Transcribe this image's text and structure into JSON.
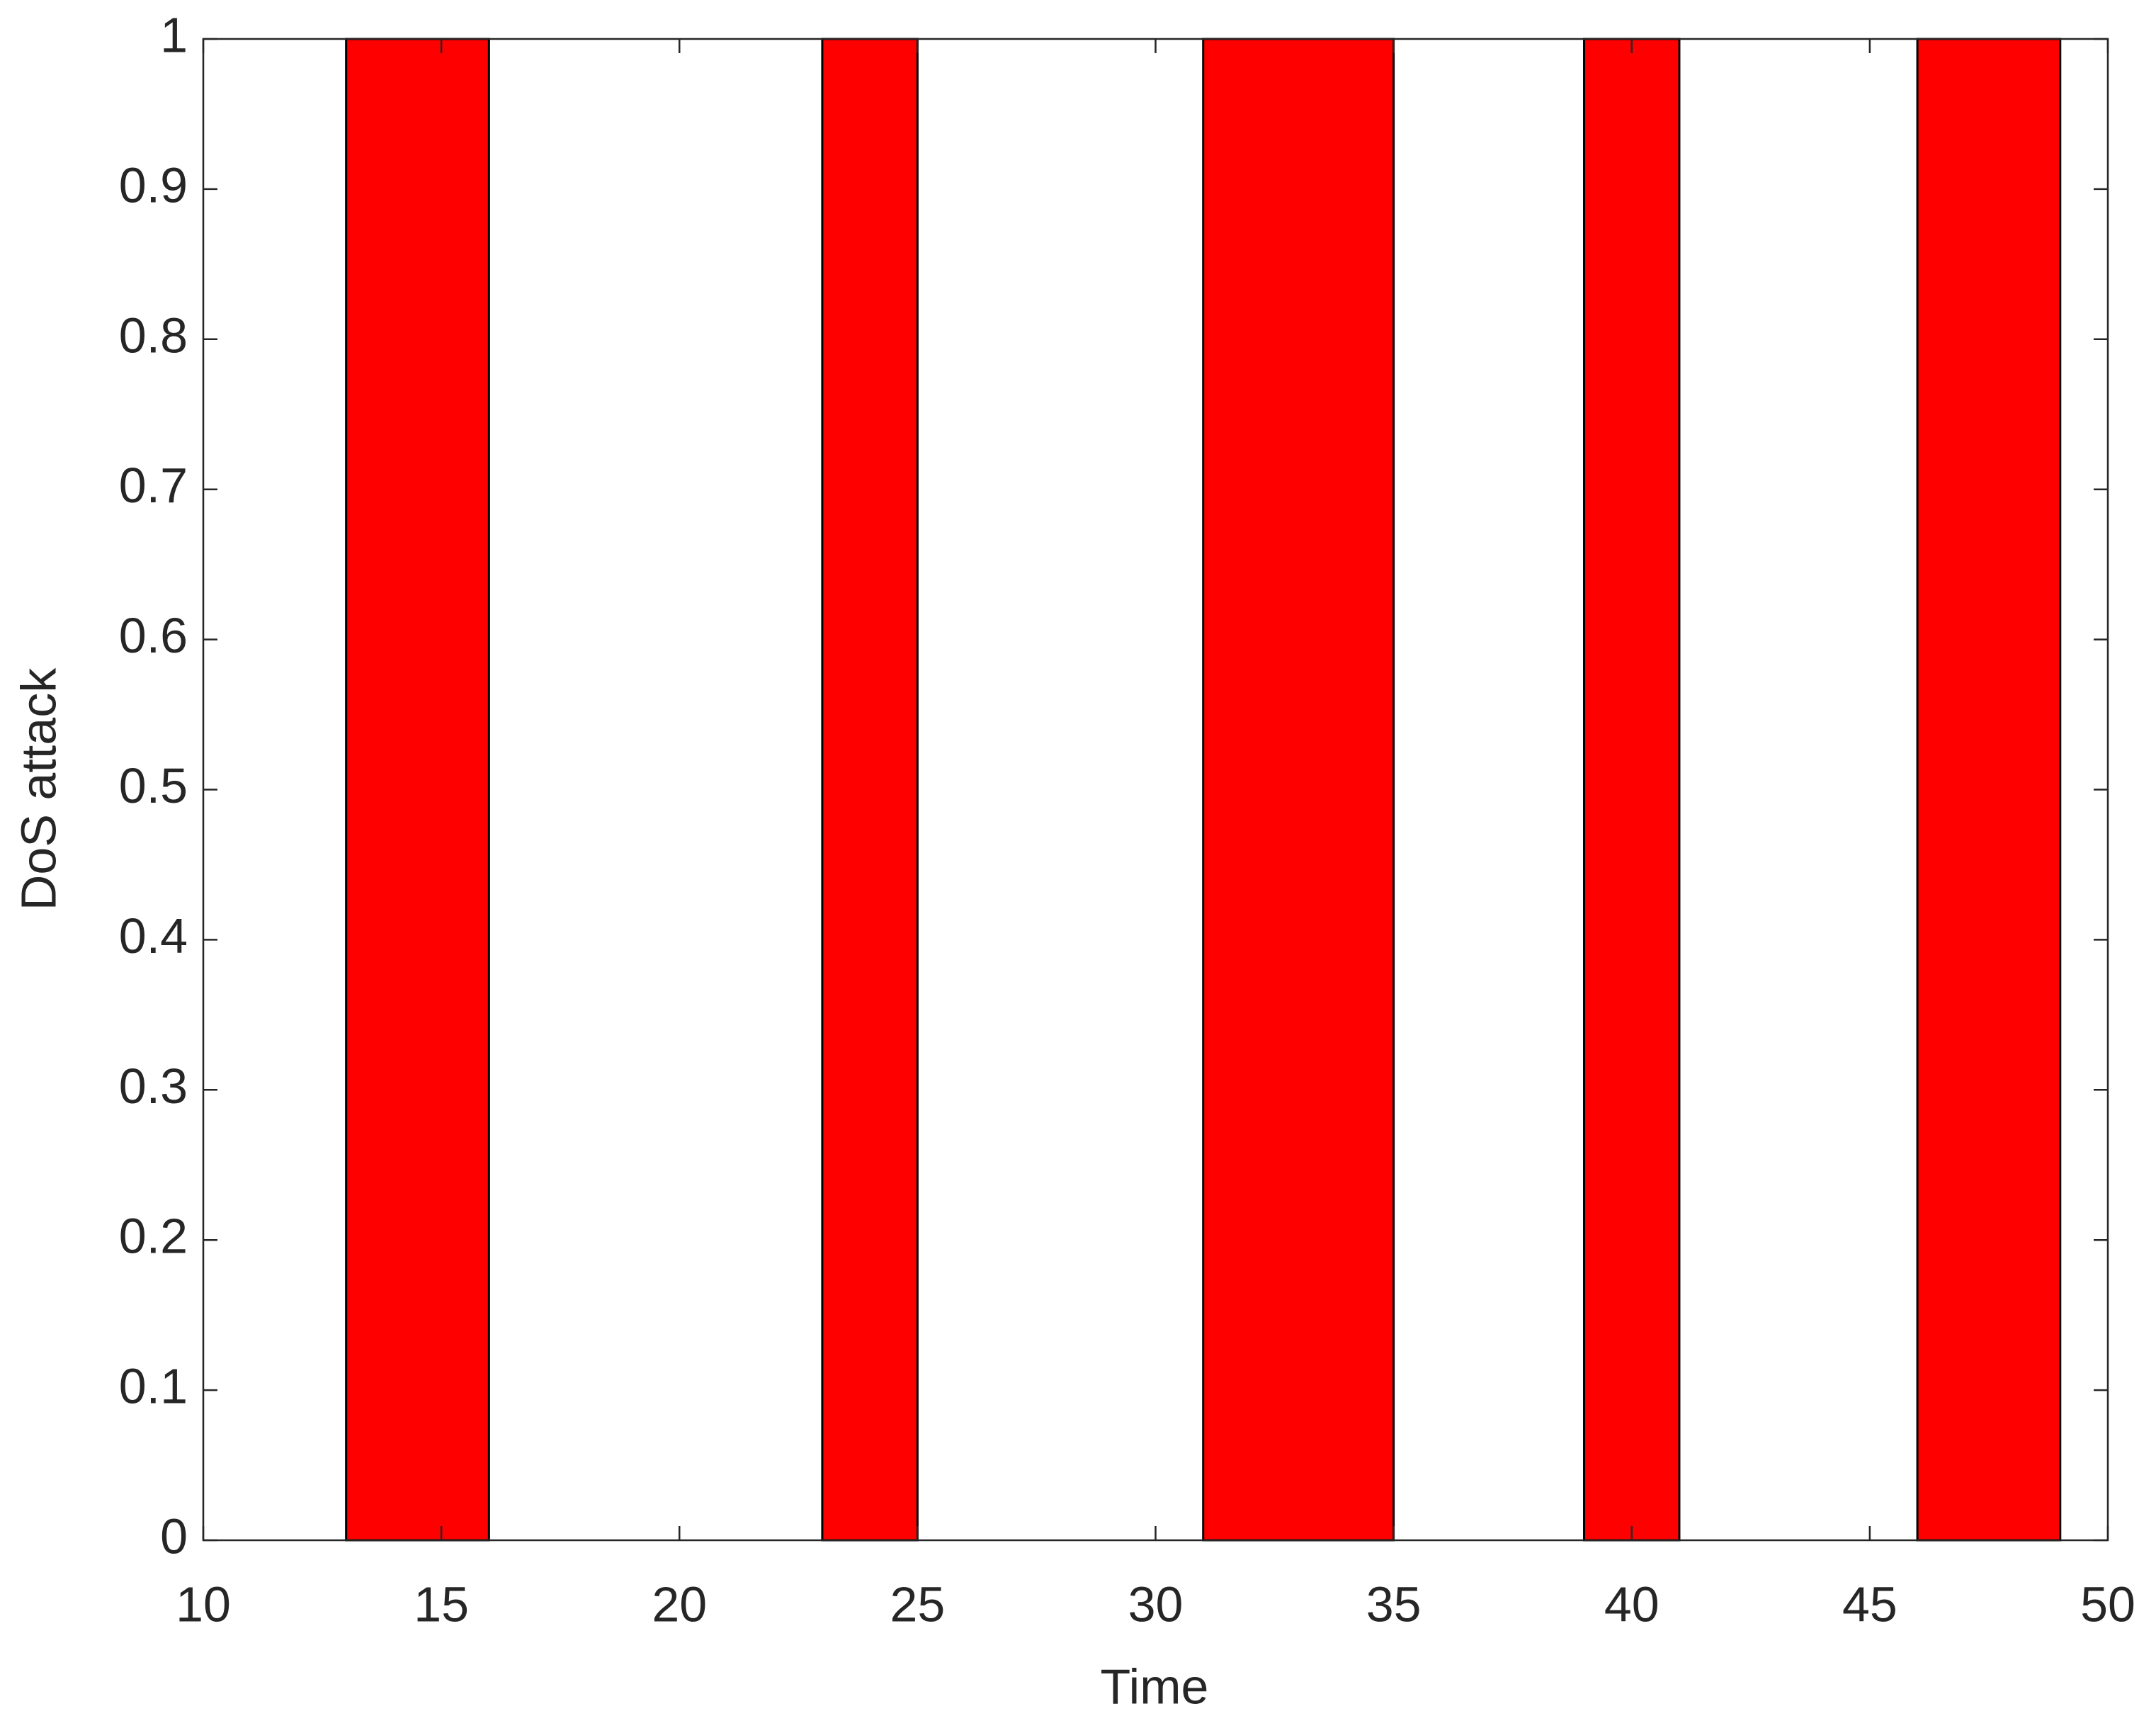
{
  "chart_data": {
    "type": "interval-bar",
    "xlabel": "Time",
    "ylabel": "DoS attack",
    "x_start": [
      13,
      23,
      31,
      39,
      46
    ],
    "x_end": [
      16,
      25,
      35,
      41,
      49
    ],
    "values": [
      1,
      1,
      1,
      1,
      1
    ],
    "color": "#ff0000",
    "xlim": [
      10,
      50
    ],
    "xticks": [
      10,
      15,
      20,
      25,
      30,
      35,
      40,
      45,
      50
    ],
    "ylim": [
      0,
      1
    ],
    "yticks": [
      0,
      0.1,
      0.2,
      0.3,
      0.4,
      0.5,
      0.6,
      0.7,
      0.8,
      0.9,
      1
    ],
    "grid": false
  }
}
